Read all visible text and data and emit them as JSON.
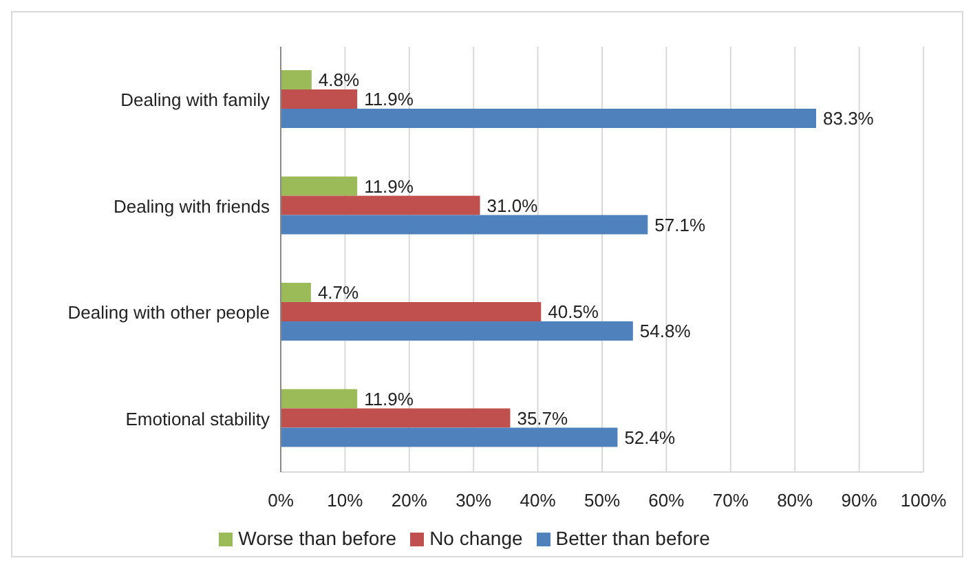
{
  "chart_data": {
    "type": "bar",
    "orientation": "horizontal",
    "categories": [
      "Dealing with family",
      "Dealing with friends",
      "Dealing with other people",
      "Emotional stability"
    ],
    "series": [
      {
        "name": "Worse than before",
        "color": "#9bbb59",
        "values": [
          4.8,
          11.9,
          4.7,
          11.9
        ],
        "value_labels": [
          "4.8%",
          "11.9%",
          "4.7%",
          "11.9%"
        ]
      },
      {
        "name": "No change",
        "color": "#c0504d",
        "values": [
          11.9,
          31.0,
          40.5,
          35.7
        ],
        "value_labels": [
          "11.9%",
          "31.0%",
          "40.5%",
          "35.7%"
        ]
      },
      {
        "name": "Better than before",
        "color": "#4f81bd",
        "values": [
          83.3,
          57.1,
          54.8,
          52.4
        ],
        "value_labels": [
          "83.3%",
          "57.1%",
          "54.8%",
          "52.4%"
        ]
      }
    ],
    "xlim": [
      0,
      100
    ],
    "xticks": [
      {
        "value": 0,
        "label": "0%"
      },
      {
        "value": 10,
        "label": "10%"
      },
      {
        "value": 20,
        "label": "20%"
      },
      {
        "value": 30,
        "label": "30%"
      },
      {
        "value": 40,
        "label": "40%"
      },
      {
        "value": 50,
        "label": "50%"
      },
      {
        "value": 60,
        "label": "60%"
      },
      {
        "value": 70,
        "label": "70%"
      },
      {
        "value": 80,
        "label": "80%"
      },
      {
        "value": 90,
        "label": "90%"
      },
      {
        "value": 100,
        "label": "100%"
      }
    ],
    "grid": "x",
    "legend": "bottom"
  }
}
